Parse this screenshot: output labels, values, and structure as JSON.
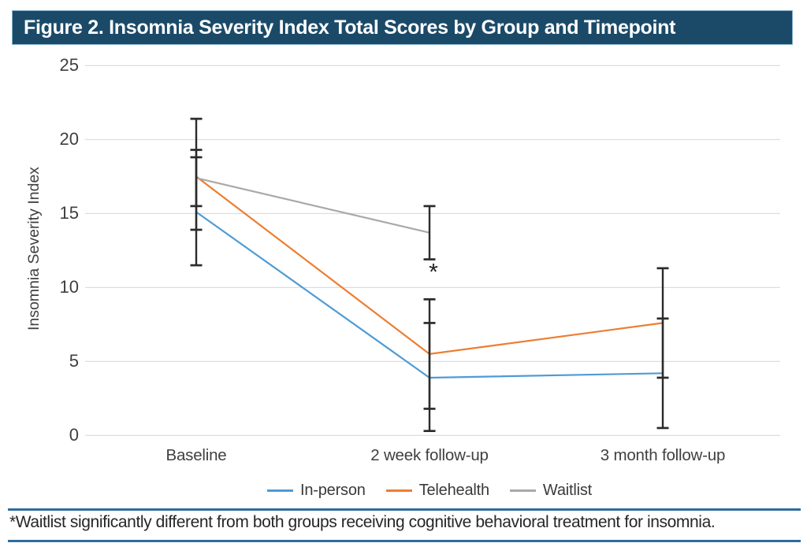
{
  "header": {
    "title": "Figure 2. Insomnia Severity Index Total Scores by Group and Timepoint"
  },
  "chart_data": {
    "type": "line",
    "title": "Figure 2. Insomnia Severity Index Total Scores by Group and Timepoint",
    "categories": [
      "Baseline",
      "2 week follow-up",
      "3 month follow-up"
    ],
    "xlabel": "",
    "ylabel": "Insomnia Severity Index",
    "ylim": [
      0,
      25
    ],
    "y_ticks": [
      0,
      5,
      10,
      15,
      20,
      25
    ],
    "grid": true,
    "legend_position": "bottom",
    "error_bars": true,
    "series": [
      {
        "name": "In-person",
        "color": "#4E9BD5",
        "values": [
          15.1,
          3.9,
          4.2
        ],
        "err_low": [
          11.5,
          0.3,
          0.5
        ],
        "err_high": [
          18.8,
          7.6,
          7.9
        ]
      },
      {
        "name": "Telehealth",
        "color": "#ED7D31",
        "values": [
          17.5,
          5.5,
          7.6
        ],
        "err_low": [
          13.9,
          1.8,
          3.9
        ],
        "err_high": [
          21.4,
          9.2,
          11.3
        ]
      },
      {
        "name": "Waitlist",
        "color": "#A9A9A9",
        "values": [
          17.4,
          13.7,
          null
        ],
        "err_low": [
          15.5,
          11.9,
          null
        ],
        "err_high": [
          19.3,
          15.5,
          null
        ]
      }
    ],
    "annotations": [
      {
        "text": "*",
        "category_index": 1,
        "y": 11.0
      }
    ]
  },
  "footnote": {
    "text": "*Waitlist significantly different from both groups receiving cognitive behavioral treatment for insomnia."
  },
  "colors": {
    "header_bg": "#1B4A68",
    "header_text": "#FFFFFF",
    "rule_blue": "#2D6D9F",
    "gridline": "#D9D9D9",
    "axis_text": "#3F3F3F",
    "error_bar": "#2B2B2B"
  }
}
